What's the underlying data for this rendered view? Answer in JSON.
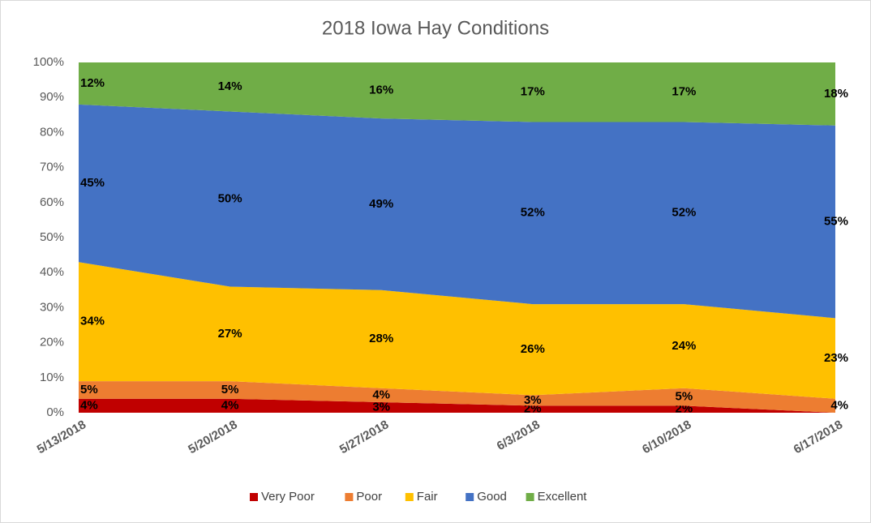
{
  "chart_data": {
    "type": "stacked-area",
    "title": "2018 Iowa Hay Conditions",
    "categories": [
      "5/13/2018",
      "5/20/2018",
      "5/27/2018",
      "6/3/2018",
      "6/10/2018",
      "6/17/2018"
    ],
    "series": [
      {
        "name": "Very Poor",
        "color": "#c00000",
        "values": [
          4,
          4,
          3,
          2,
          2,
          0
        ],
        "value_labels": [
          "4%",
          "4%",
          "3%",
          "2%",
          "2%",
          null
        ]
      },
      {
        "name": "Poor",
        "color": "#ed7d31",
        "values": [
          5,
          5,
          4,
          3,
          5,
          4
        ],
        "value_labels": [
          "5%",
          "5%",
          "4%",
          "3%",
          "5%",
          "4%"
        ]
      },
      {
        "name": "Fair",
        "color": "#ffc000",
        "values": [
          34,
          27,
          28,
          26,
          24,
          23
        ],
        "value_labels": [
          "34%",
          "27%",
          "28%",
          "26%",
          "24%",
          "23%"
        ]
      },
      {
        "name": "Good",
        "color": "#4472c4",
        "values": [
          45,
          50,
          49,
          52,
          52,
          55
        ],
        "value_labels": [
          "45%",
          "50%",
          "49%",
          "52%",
          "52%",
          "55%"
        ]
      },
      {
        "name": "Excellent",
        "color": "#70ad47",
        "values": [
          12,
          14,
          16,
          17,
          17,
          18
        ],
        "value_labels": [
          "12%",
          "14%",
          "16%",
          "17%",
          "17%",
          "18%"
        ]
      }
    ],
    "ylim": [
      0,
      100
    ],
    "yticks": [
      {
        "value": 0,
        "label": "0%"
      },
      {
        "value": 10,
        "label": "10%"
      },
      {
        "value": 20,
        "label": "20%"
      },
      {
        "value": 30,
        "label": "30%"
      },
      {
        "value": 40,
        "label": "40%"
      },
      {
        "value": 50,
        "label": "50%"
      },
      {
        "value": 60,
        "label": "60%"
      },
      {
        "value": 70,
        "label": "70%"
      },
      {
        "value": 80,
        "label": "80%"
      },
      {
        "value": 90,
        "label": "90%"
      },
      {
        "value": 100,
        "label": "100%"
      }
    ],
    "legend": "bottom"
  }
}
